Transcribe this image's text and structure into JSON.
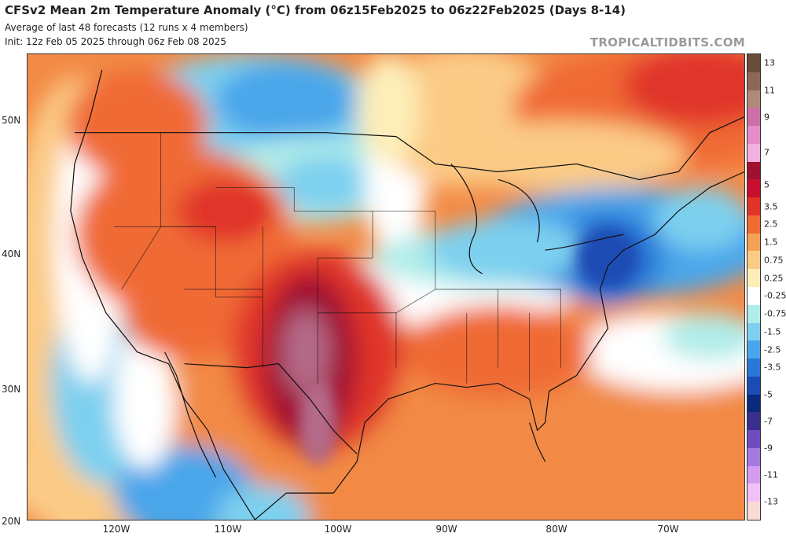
{
  "header": {
    "title": "CFSv2 Mean 2m Temperature Anomaly (°C) from 06z15Feb2025 to 06z22Feb2025 (Days 8-14)",
    "subtitle1": "Average of last 48 forecasts (12 runs x 4 members)",
    "subtitle2": "Init: 12z Feb 05 2025 through 06z Feb 08 2025",
    "watermark": "TROPICALTIDBITS.COM"
  },
  "axes": {
    "lat_labels": [
      "50N",
      "40N",
      "30N",
      "20N"
    ],
    "lon_labels": [
      "120W",
      "110W",
      "100W",
      "90W",
      "80W",
      "70W"
    ]
  },
  "colorbar": {
    "labels": [
      "13",
      "11",
      "9",
      "7",
      "5",
      "3.5",
      "2.5",
      "1.5",
      "0.75",
      "0.25",
      "-0.25",
      "-0.75",
      "-1.5",
      "-2.5",
      "-3.5",
      "-5",
      "-7",
      "-9",
      "-11",
      "-13"
    ],
    "colors": [
      "#6a4c3a",
      "#8a6a56",
      "#b08a78",
      "#cc6fa8",
      "#e58cc8",
      "#f2b0de",
      "#a01030",
      "#c8102e",
      "#e0342a",
      "#f06a34",
      "#f7a155",
      "#fbcb86",
      "#fdeeb8",
      "#ffffff",
      "#b0ece9",
      "#7dd0ef",
      "#4aa6ea",
      "#2a78d6",
      "#1a4cb4",
      "#0c2a7c",
      "#3a2f8c",
      "#6e4cc0",
      "#a27ae0",
      "#d39cf0",
      "#f0c0f8",
      "#f8dcd4"
    ]
  },
  "colors": {
    "ocean_neutral": "#ffffff",
    "warm_light": "#fbcb86",
    "warm_medium": "#f28a45",
    "warm_strong": "#e0342a",
    "warm_max": "#a01030",
    "warm_extreme": "#b46a88",
    "cool_light": "#b0ece9",
    "cool_medium": "#4aa6ea",
    "cool_strong": "#1a4cb4"
  }
}
